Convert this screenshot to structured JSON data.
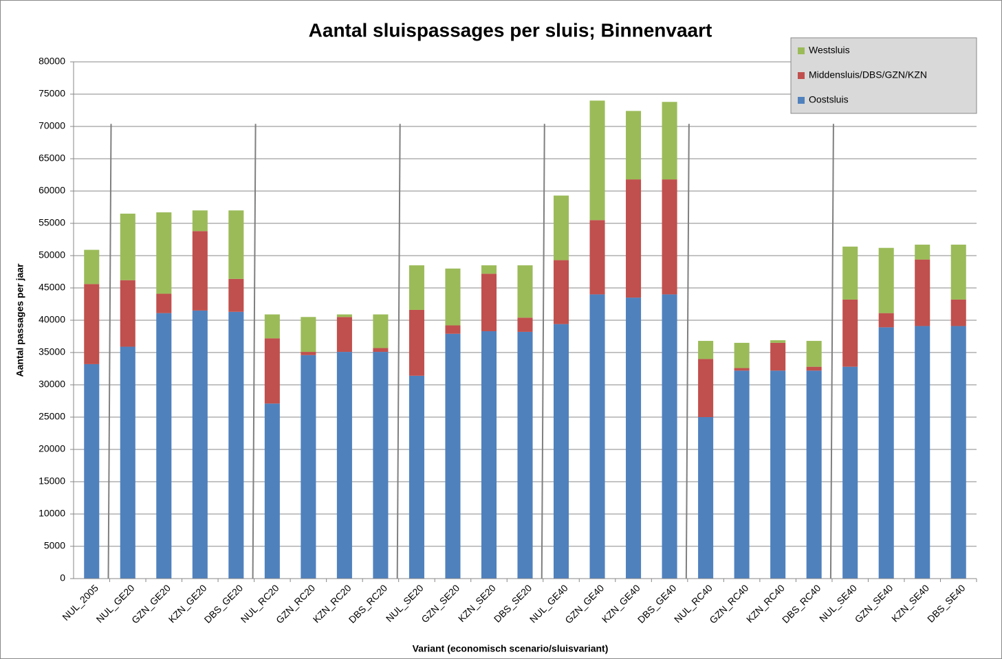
{
  "chart_data": {
    "type": "stacked_bar",
    "title": "Aantal sluispassages per sluis; Binnenvaart",
    "y_label": "Aantal passages  per jaar",
    "x_label": "Variant (economisch  scenario/sluisvariant)",
    "categories": [
      "NUL_2005",
      "NUL_GE20",
      "GZN_GE20",
      "KZN_GE20",
      "DBS_GE20",
      "NUL_RC20",
      "GZN_RC20",
      "KZN_RC20",
      "DBS_RC20",
      "NUL_SE20",
      "GZN_SE20",
      "KZN_SE20",
      "DBS_SE20",
      "NUL_GE40",
      "GZN_GE40",
      "KZN_GE40",
      "DBS_GE40",
      "NUL_RC40",
      "GZN_RC40",
      "KZN_RC40",
      "DBS_RC40",
      "NUL_SE40",
      "GZN_SE40",
      "KZN_SE40",
      "DBS_SE40"
    ],
    "series": [
      {
        "name": "Oostsluis",
        "color": "#4f81bd",
        "values": [
          33200,
          35900,
          41100,
          41500,
          41300,
          27100,
          34600,
          35100,
          35100,
          31400,
          37900,
          38300,
          38200,
          39400,
          44000,
          43500,
          44000,
          25000,
          32200,
          32200,
          32200,
          32800,
          38900,
          39100,
          39100
        ]
      },
      {
        "name": "Middensluis/DBS/GZN/KZN",
        "color": "#c0504d",
        "values": [
          12400,
          10300,
          3000,
          12300,
          5100,
          10100,
          500,
          5400,
          600,
          10200,
          1300,
          8900,
          2200,
          9900,
          11500,
          18300,
          17800,
          9000,
          400,
          4300,
          600,
          10400,
          2200,
          10300,
          4100
        ]
      },
      {
        "name": "Westsluis",
        "color": "#9bbb59",
        "values": [
          5300,
          10300,
          12600,
          3200,
          10600,
          3700,
          5400,
          400,
          5200,
          6900,
          8800,
          1300,
          8100,
          10000,
          18500,
          10600,
          12000,
          2800,
          3900,
          400,
          4000,
          8200,
          10100,
          2300,
          8500
        ]
      }
    ],
    "ylim": [
      0,
      80000
    ],
    "yticks": [
      0,
      5000,
      10000,
      15000,
      20000,
      25000,
      30000,
      35000,
      40000,
      45000,
      50000,
      55000,
      60000,
      65000,
      70000,
      75000,
      80000
    ],
    "grid": true,
    "legend": "top-right"
  }
}
